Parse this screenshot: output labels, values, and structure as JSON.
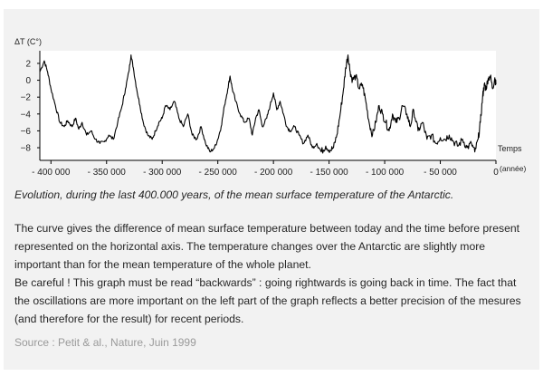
{
  "chart_data": {
    "type": "line",
    "title": "",
    "xlabel": "Temps (année)",
    "ylabel": "ΔT (C°)",
    "xlim": [
      -410000,
      0
    ],
    "ylim": [
      -9.5,
      3.5
    ],
    "grid": false,
    "x_ticks": [
      {
        "value": -400000,
        "label": "- 400 000"
      },
      {
        "value": -350000,
        "label": "- 350 000"
      },
      {
        "value": -300000,
        "label": "- 300 000"
      },
      {
        "value": -250000,
        "label": "- 250 000"
      },
      {
        "value": -200000,
        "label": "- 200 000"
      },
      {
        "value": -150000,
        "label": "- 150 000"
      },
      {
        "value": -100000,
        "label": "- 100 000"
      },
      {
        "value": -50000,
        "label": "- 50 000"
      },
      {
        "value": 0,
        "label": "0"
      }
    ],
    "y_ticks": [
      {
        "value": 2,
        "label": "2"
      },
      {
        "value": 0,
        "label": "0"
      },
      {
        "value": -2,
        "label": "−2"
      },
      {
        "value": -4,
        "label": "−4"
      },
      {
        "value": -6,
        "label": "−6"
      },
      {
        "value": -8,
        "label": "−8"
      }
    ],
    "series": [
      {
        "color": "#000000",
        "points": [
          [
            -410000,
            1.0
          ],
          [
            -406000,
            2.3
          ],
          [
            -403000,
            1.0
          ],
          [
            -400000,
            -1.0
          ],
          [
            -396000,
            -3.0
          ],
          [
            -392000,
            -5.0
          ],
          [
            -388000,
            -5.5
          ],
          [
            -385000,
            -4.8
          ],
          [
            -381000,
            -5.5
          ],
          [
            -378000,
            -4.5
          ],
          [
            -375000,
            -5.8
          ],
          [
            -372000,
            -5.0
          ],
          [
            -368000,
            -6.5
          ],
          [
            -364000,
            -6.0
          ],
          [
            -360000,
            -7.0
          ],
          [
            -356000,
            -7.5
          ],
          [
            -352000,
            -7.3
          ],
          [
            -348000,
            -6.5
          ],
          [
            -344000,
            -7.0
          ],
          [
            -340000,
            -5.0
          ],
          [
            -336000,
            -3.0
          ],
          [
            -333000,
            -1.0
          ],
          [
            -330000,
            1.0
          ],
          [
            -328000,
            3.0
          ],
          [
            -326000,
            1.5
          ],
          [
            -323000,
            -1.0
          ],
          [
            -320000,
            -3.0
          ],
          [
            -317000,
            -5.0
          ],
          [
            -313000,
            -6.5
          ],
          [
            -309000,
            -7.0
          ],
          [
            -306000,
            -6.0
          ],
          [
            -303000,
            -5.0
          ],
          [
            -300000,
            -4.5
          ],
          [
            -297000,
            -3.0
          ],
          [
            -293000,
            -3.5
          ],
          [
            -289000,
            -2.5
          ],
          [
            -285000,
            -4.5
          ],
          [
            -281000,
            -5.5
          ],
          [
            -277000,
            -4.0
          ],
          [
            -273000,
            -6.5
          ],
          [
            -269000,
            -7.0
          ],
          [
            -265000,
            -5.5
          ],
          [
            -261000,
            -7.5
          ],
          [
            -257000,
            -8.5
          ],
          [
            -253000,
            -8.0
          ],
          [
            -250000,
            -7.0
          ],
          [
            -247000,
            -5.5
          ],
          [
            -244000,
            -3.0
          ],
          [
            -241000,
            -1.0
          ],
          [
            -239000,
            0.5
          ],
          [
            -237000,
            -1.0
          ],
          [
            -234000,
            -2.5
          ],
          [
            -230000,
            -4.0
          ],
          [
            -226000,
            -5.0
          ],
          [
            -222000,
            -4.5
          ],
          [
            -219000,
            -6.5
          ],
          [
            -216000,
            -4.5
          ],
          [
            -213000,
            -3.5
          ],
          [
            -210000,
            -5.5
          ],
          [
            -206000,
            -4.5
          ],
          [
            -203000,
            -3.0
          ],
          [
            -200000,
            -1.5
          ],
          [
            -197000,
            -3.5
          ],
          [
            -194000,
            -2.5
          ],
          [
            -191000,
            -4.0
          ],
          [
            -188000,
            -5.5
          ],
          [
            -185000,
            -6.0
          ],
          [
            -181000,
            -5.5
          ],
          [
            -177000,
            -6.5
          ],
          [
            -173000,
            -7.5
          ],
          [
            -169000,
            -6.5
          ],
          [
            -165000,
            -8.0
          ],
          [
            -161000,
            -7.5
          ],
          [
            -157000,
            -8.5
          ],
          [
            -153000,
            -7.8
          ],
          [
            -149000,
            -8.3
          ],
          [
            -146000,
            -8.0
          ],
          [
            -143000,
            -6.5
          ],
          [
            -140000,
            -4.0
          ],
          [
            -137000,
            -1.0
          ],
          [
            -135000,
            1.5
          ],
          [
            -133000,
            3.0
          ],
          [
            -131000,
            1.0
          ],
          [
            -129000,
            0.0
          ],
          [
            -126000,
            0.5
          ],
          [
            -123000,
            -1.0
          ],
          [
            -120000,
            -0.5
          ],
          [
            -117000,
            -2.5
          ],
          [
            -114000,
            -5.0
          ],
          [
            -111000,
            -6.5
          ],
          [
            -108000,
            -5.0
          ],
          [
            -105000,
            -3.0
          ],
          [
            -102000,
            -4.0
          ],
          [
            -99000,
            -5.0
          ],
          [
            -96000,
            -6.0
          ],
          [
            -93000,
            -4.0
          ],
          [
            -90000,
            -5.0
          ],
          [
            -87000,
            -4.5
          ],
          [
            -84000,
            -3.0
          ],
          [
            -80000,
            -4.0
          ],
          [
            -77000,
            -5.5
          ],
          [
            -74000,
            -3.5
          ],
          [
            -70000,
            -6.0
          ],
          [
            -66000,
            -5.0
          ],
          [
            -62000,
            -7.0
          ],
          [
            -58000,
            -6.5
          ],
          [
            -54000,
            -7.5
          ],
          [
            -50000,
            -6.8
          ],
          [
            -46000,
            -7.0
          ],
          [
            -42000,
            -6.5
          ],
          [
            -38000,
            -7.3
          ],
          [
            -34000,
            -7.8
          ],
          [
            -30000,
            -7.0
          ],
          [
            -26000,
            -8.0
          ],
          [
            -22000,
            -7.5
          ],
          [
            -19000,
            -8.5
          ],
          [
            -16000,
            -7.0
          ],
          [
            -14000,
            -5.0
          ],
          [
            -12000,
            -2.0
          ],
          [
            -11000,
            -1.0
          ],
          [
            -10000,
            -0.5
          ],
          [
            -9000,
            -1.0
          ],
          [
            -7000,
            0.2
          ],
          [
            -5000,
            0.5
          ],
          [
            -3000,
            -1.0
          ],
          [
            -1000,
            0.3
          ],
          [
            0,
            -0.5
          ]
        ]
      }
    ]
  },
  "caption": "Evolution, during the last 400.000 years, of the mean surface temperature of the Antarctic.",
  "description": {
    "paragraph1": "The curve gives the difference of mean surface temperature between today and the time before present represented on the horizontal axis. The temperature changes over the Antarctic are slightly more important than for the mean temperature of the whole planet.",
    "paragraph2": "Be careful ! This graph must be read “backwards” : going rightwards is going back in time. The fact that the oscillations are more important on the left part of the graph reflects a better precision of the mesures (and therefore for the result) for recent periods."
  },
  "source": "Source : Petit & al., Nature, Juin 1999"
}
